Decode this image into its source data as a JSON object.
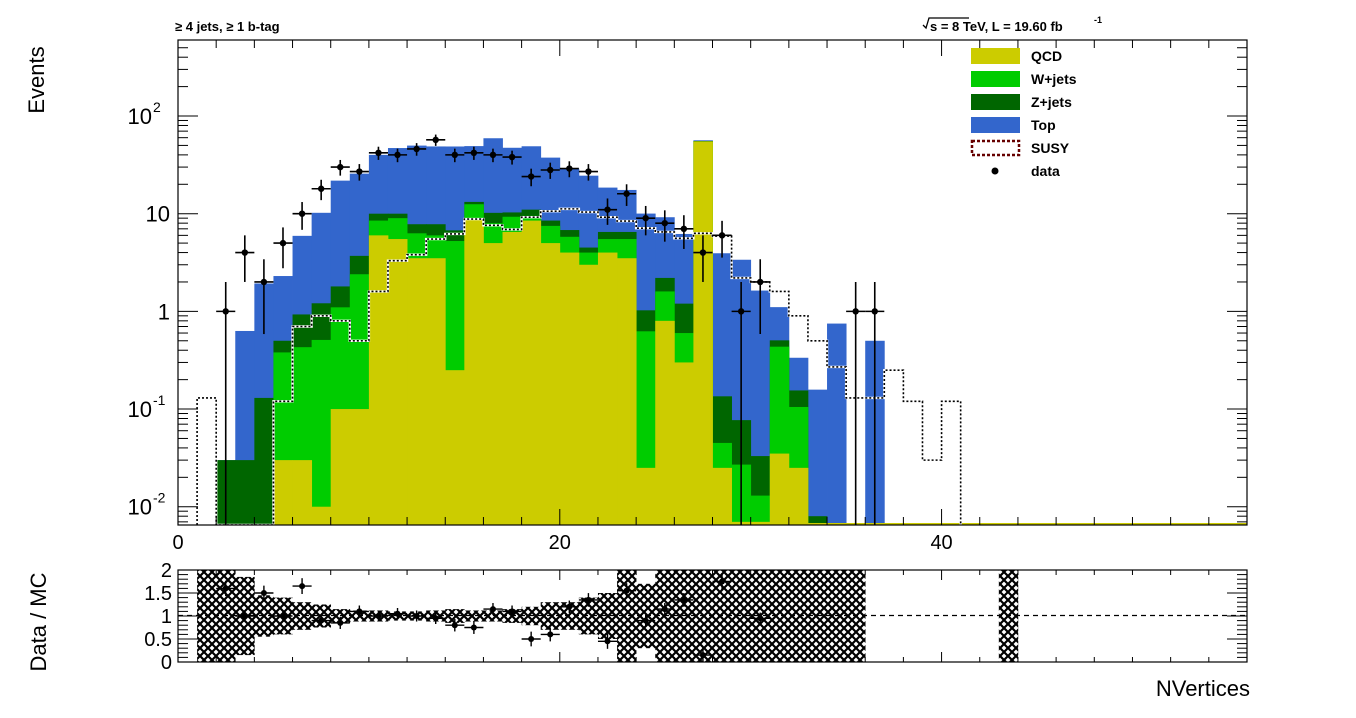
{
  "header": {
    "selection": "≥ 4 jets, ≥ 1 b-tag",
    "lumi_prefix": "s = 8 TeV, L = 19.60 fb",
    "lumi_sup": "-1"
  },
  "colors": {
    "QCD": "#cccc00",
    "W+jets": "#00cc00",
    "Z+jets": "#006600",
    "Top": "#3366cc",
    "SUSY": "#660000",
    "data": "#000000"
  },
  "chart_data": [
    {
      "type": "bar",
      "stacked": true,
      "ylabel": "Events",
      "xlabel": "",
      "xlim": [
        0,
        56
      ],
      "ylim": [
        0.0065,
        600
      ],
      "yscale": "log",
      "xticks": [
        "0",
        "20",
        "40"
      ],
      "yticks": [
        "10^-2",
        "10^-1",
        "1",
        "10",
        "10^2"
      ],
      "legend_position": "top-right",
      "bin_width": 1,
      "bin_low_edges": [
        1,
        2,
        3,
        4,
        5,
        6,
        7,
        8,
        9,
        10,
        11,
        12,
        13,
        14,
        15,
        16,
        17,
        18,
        19,
        20,
        21,
        22,
        23,
        24,
        25,
        26,
        27,
        28,
        29,
        30,
        31,
        32,
        33,
        34,
        35,
        36,
        37,
        38,
        39,
        40
      ],
      "series": [
        {
          "name": "QCD",
          "values": [
            0,
            0,
            0,
            0,
            0.03,
            0.03,
            0.01,
            0.1,
            0.1,
            6,
            5.5,
            3.5,
            3.5,
            0.25,
            9,
            5,
            6.5,
            8.5,
            5,
            4,
            3,
            4,
            3.5,
            0.025,
            0.8,
            0.3,
            55,
            0.025,
            0.007,
            0.007,
            0.035,
            0.025,
            0,
            0,
            0,
            0,
            0,
            0,
            0,
            0
          ]
        },
        {
          "name": "W+jets",
          "values": [
            0,
            0,
            0,
            0,
            0.35,
            0.4,
            0.5,
            1,
            2.3,
            2.5,
            3.5,
            2.8,
            2.5,
            5,
            3.5,
            3,
            2.8,
            1,
            2.5,
            1.8,
            1,
            1.5,
            2,
            0.6,
            0.8,
            0.3,
            0,
            0.02,
            0.02,
            0.006,
            0.4,
            0.08,
            0,
            0,
            0,
            0,
            0,
            0,
            0,
            0
          ]
        },
        {
          "name": "Z+jets",
          "values": [
            0,
            0.03,
            0.03,
            0.13,
            0.12,
            0.5,
            0.7,
            0.7,
            1.3,
            1.5,
            1,
            1.5,
            1.8,
            1.5,
            0.7,
            2.2,
            1,
            1.5,
            1,
            1,
            0.5,
            1,
            1,
            0.4,
            0.6,
            0.6,
            0.5,
            0.09,
            0.05,
            0.02,
            0.07,
            0.05,
            0.008,
            0,
            0,
            0,
            0,
            0,
            0,
            0
          ]
        },
        {
          "name": "Top",
          "values": [
            0,
            0,
            0.6,
            1.8,
            1.8,
            5,
            9,
            20,
            22,
            30,
            37,
            42,
            41,
            42,
            36,
            49,
            37,
            38,
            29,
            22,
            20,
            12,
            11,
            9,
            7,
            5,
            0.9,
            3.8,
            3.3,
            1.6,
            0.6,
            0.18,
            0.15,
            0.75,
            0,
            0.5,
            0,
            0,
            0,
            0
          ]
        },
        {
          "name": "SUSY",
          "values": [
            0.13,
            0,
            0,
            0,
            0.12,
            0.7,
            0.9,
            0.8,
            0.5,
            1.6,
            3.3,
            3.8,
            5.5,
            6.2,
            8.8,
            7.6,
            6.9,
            9.2,
            10.6,
            11.2,
            10.4,
            9.2,
            8.4,
            7.1,
            6.5,
            5.6,
            6.3,
            5.9,
            2.2,
            2.0,
            1.6,
            0.9,
            0.5,
            0.27,
            0.13,
            0.13,
            0.25,
            0.12,
            0.03,
            0.12
          ]
        }
      ],
      "data_points": {
        "name": "data",
        "x": [
          2.5,
          3.5,
          4.5,
          5.5,
          6.5,
          7.5,
          8.5,
          9.5,
          10.5,
          11.5,
          12.5,
          13.5,
          14.5,
          15.5,
          16.5,
          17.5,
          18.5,
          19.5,
          20.5,
          21.5,
          22.5,
          23.5,
          24.5,
          25.5,
          26.5,
          27.5,
          28.5,
          29.5,
          30.5,
          35.5,
          36.5
        ],
        "y": [
          1,
          4,
          2,
          5,
          10,
          18,
          30,
          27,
          42,
          40,
          46,
          57,
          40,
          42,
          40,
          38,
          24,
          28,
          29,
          27,
          11,
          16,
          9,
          8,
          7,
          4,
          6,
          1,
          2,
          1,
          1
        ]
      }
    },
    {
      "type": "scatter",
      "ylabel": "Data / MC",
      "xlabel": "NVertices",
      "xlim": [
        0,
        56
      ],
      "ylim": [
        0,
        2
      ],
      "yticks": [
        "0",
        "0.5",
        "1",
        "1.5",
        "2"
      ],
      "reference_line": 1,
      "x": [
        2.5,
        3.5,
        4.5,
        5.5,
        6.5,
        7.5,
        8.5,
        9.5,
        10.5,
        11.5,
        12.5,
        13.5,
        14.5,
        15.5,
        16.5,
        17.5,
        18.5,
        19.5,
        20.5,
        21.5,
        22.5,
        23.5,
        24.5,
        25.5,
        26.5,
        27.5,
        28.5,
        30.5
      ],
      "y": [
        1.6,
        1.0,
        1.5,
        1.0,
        1.65,
        0.9,
        0.85,
        1.1,
        1.0,
        1.05,
        1.0,
        0.95,
        0.8,
        0.75,
        1.15,
        1.1,
        0.5,
        0.6,
        1.2,
        1.35,
        0.45,
        1.55,
        0.9,
        1.15,
        1.35,
        0.15,
        1.75,
        0.95
      ],
      "band": [
        {
          "lo": 0.0,
          "hi": 2.0
        },
        {
          "lo": 0.0,
          "hi": 2.0
        },
        {
          "lo": 0.15,
          "hi": 1.85
        },
        {
          "lo": 0.55,
          "hi": 1.45
        },
        {
          "lo": 0.6,
          "hi": 1.4
        },
        {
          "lo": 0.7,
          "hi": 1.3
        },
        {
          "lo": 0.75,
          "hi": 1.25
        },
        {
          "lo": 0.85,
          "hi": 1.15
        },
        {
          "lo": 0.88,
          "hi": 1.12
        },
        {
          "lo": 0.88,
          "hi": 1.12
        },
        {
          "lo": 0.9,
          "hi": 1.1
        },
        {
          "lo": 0.9,
          "hi": 1.1
        },
        {
          "lo": 0.88,
          "hi": 1.12
        },
        {
          "lo": 0.85,
          "hi": 1.15
        },
        {
          "lo": 0.88,
          "hi": 1.12
        },
        {
          "lo": 0.88,
          "hi": 1.12
        },
        {
          "lo": 0.85,
          "hi": 1.15
        },
        {
          "lo": 0.8,
          "hi": 1.2
        },
        {
          "lo": 0.7,
          "hi": 1.3
        },
        {
          "lo": 0.7,
          "hi": 1.3
        },
        {
          "lo": 0.6,
          "hi": 1.4
        },
        {
          "lo": 0.5,
          "hi": 1.5
        },
        {
          "lo": 0.0,
          "hi": 2.0
        },
        {
          "lo": 0.3,
          "hi": 1.7
        },
        {
          "lo": 0.0,
          "hi": 2.0
        },
        {
          "lo": 0.0,
          "hi": 2.0
        },
        {
          "lo": 0.0,
          "hi": 2.0
        },
        {
          "lo": 0.0,
          "hi": 2.0
        },
        {
          "lo": 0.0,
          "hi": 2.0
        },
        {
          "lo": 0.0,
          "hi": 2.0
        },
        {
          "lo": 0.0,
          "hi": 2.0
        },
        {
          "lo": 0.0,
          "hi": 2.0
        },
        {
          "lo": 0.0,
          "hi": 2.0
        },
        {
          "lo": 0.0,
          "hi": 2.0
        },
        {
          "lo": 0.0,
          "hi": 2.0
        },
        {
          "lo": 0.0,
          "hi": 0.0
        },
        {
          "lo": 0.0,
          "hi": 0.0
        },
        {
          "lo": 0.0,
          "hi": 0.0
        },
        {
          "lo": 0.0,
          "hi": 0.0
        },
        {
          "lo": 0.0,
          "hi": 0.0
        },
        {
          "lo": 0.0,
          "hi": 0.0
        },
        {
          "lo": 0.0,
          "hi": 0.0
        },
        {
          "lo": 0.0,
          "hi": 2.0
        }
      ]
    }
  ]
}
